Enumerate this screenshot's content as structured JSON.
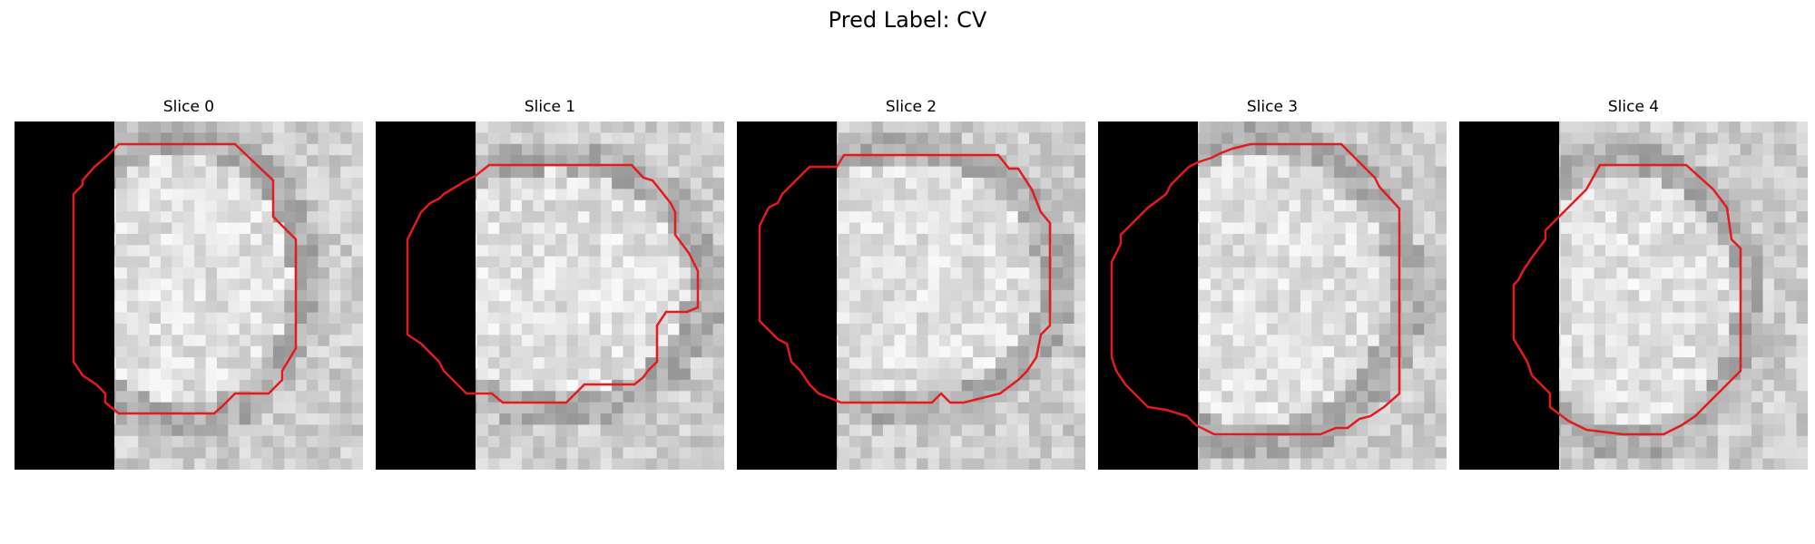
{
  "figure": {
    "title": "Pred Label: CV"
  },
  "panels": [
    {
      "title": "Slice 0"
    },
    {
      "title": "Slice 1"
    },
    {
      "title": "Slice 2"
    },
    {
      "title": "Slice 3"
    },
    {
      "title": "Slice 4"
    }
  ],
  "colors": {
    "contour": "#e41a1c",
    "mask_region": "#000000",
    "background": "#ffffff"
  }
}
